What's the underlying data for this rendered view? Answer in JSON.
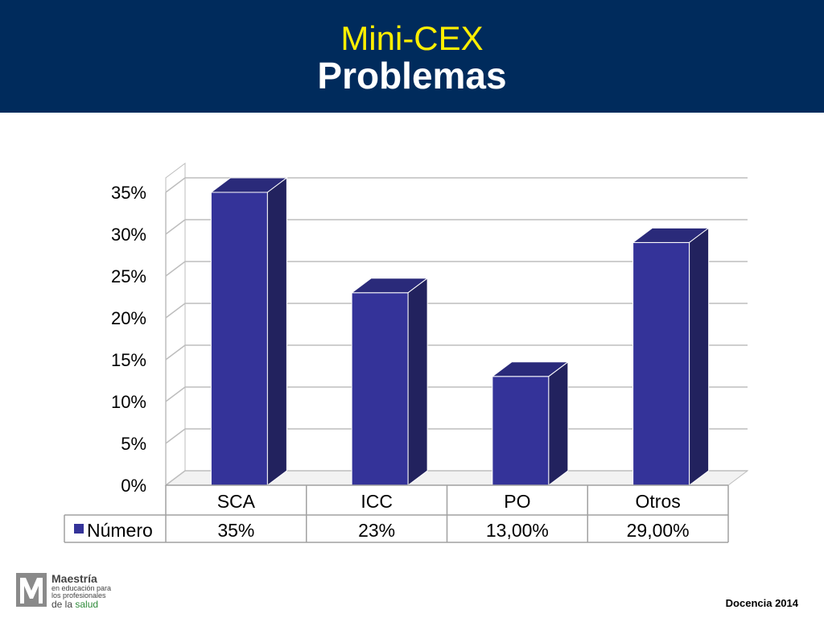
{
  "header": {
    "title": "Mini-CEX",
    "subtitle": "Problemas"
  },
  "chart_data": {
    "type": "bar",
    "style": "3d-column",
    "categories": [
      "SCA",
      "ICC",
      "PO",
      "Otros"
    ],
    "series": [
      {
        "name": "Número",
        "values": [
          35,
          23,
          13,
          29
        ],
        "color": "#343399"
      }
    ],
    "data_labels": [
      "35%",
      "23%",
      "13,00%",
      "29,00%"
    ],
    "ylim": [
      0,
      35
    ],
    "y_ticks": [
      0,
      5,
      10,
      15,
      20,
      25,
      30,
      35
    ],
    "y_tick_labels": [
      "0%",
      "5%",
      "10%",
      "15%",
      "20%",
      "25%",
      "30%",
      "35%"
    ],
    "grid": true,
    "legend": "data-table"
  },
  "logo": {
    "title": "Maestría",
    "line1": "en educación para",
    "line2": "los profesionales",
    "line3_a": "de la",
    "line3_b": "salud"
  },
  "footer": {
    "text": "Docencia 2014"
  }
}
